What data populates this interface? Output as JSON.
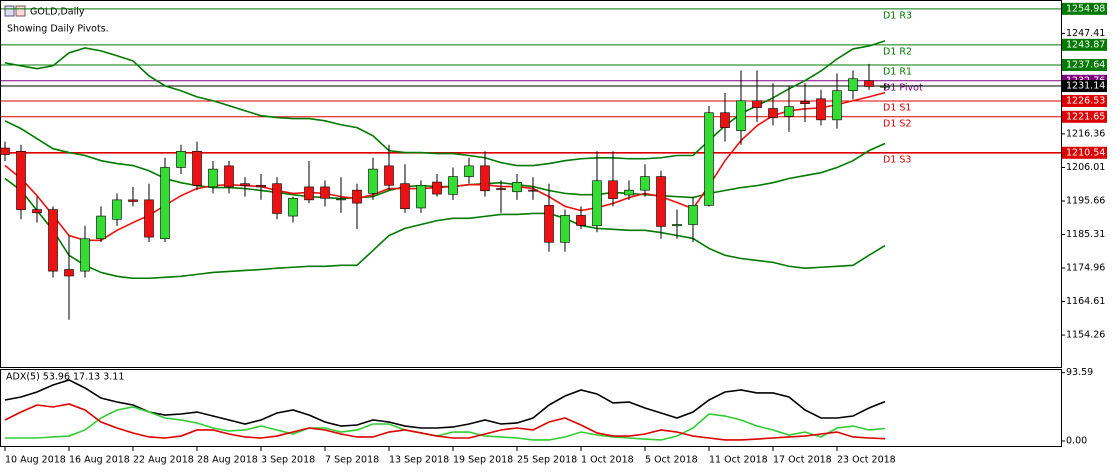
{
  "chart_data": [
    {
      "type": "candlestick",
      "title": "GOLD,Daily",
      "subtitle": "Showing Daily Pivots.",
      "categories": [
        "10 Aug 2018",
        null,
        null,
        null,
        "16 Aug 2018",
        null,
        null,
        null,
        "22 Aug 2018",
        null,
        null,
        null,
        "28 Aug 2018",
        null,
        null,
        null,
        "3 Sep 2018",
        null,
        null,
        null,
        "7 Sep 2018",
        null,
        null,
        null,
        "13 Sep 2018",
        null,
        null,
        null,
        "19 Sep 2018",
        null,
        null,
        null,
        "25 Sep 2018",
        null,
        null,
        null,
        "1 Oct 2018",
        null,
        null,
        null,
        "5 Oct 2018",
        null,
        null,
        null,
        "11 Oct 2018",
        null,
        null,
        null,
        "17 Oct 2018",
        null,
        null,
        null,
        "23 Oct 2018",
        null,
        null,
        null
      ],
      "open": [
        1212,
        1211,
        1193,
        1193,
        1174.5,
        1174,
        1184,
        1190,
        1196,
        1196,
        1184,
        1206,
        1211,
        1200,
        1206.5,
        1201,
        1200.5,
        1201,
        1191,
        1200,
        1200,
        1196,
        1199,
        1198,
        1206.5,
        1201,
        1193.5,
        1201.5,
        1197.7,
        1203.2,
        1206.5,
        1199.5,
        1198.5,
        1199,
        1194.3,
        1182.9,
        1191.2,
        1188,
        1201.9,
        1197.5,
        1199,
        1203.2,
        1188,
        1188.4,
        1194.3,
        1222.9,
        1217.4,
        1226.6,
        1224.2,
        1221.8,
        1226.3,
        1227.2,
        1220.7,
        1229.7,
        1232.8,
        1231
      ],
      "high": [
        1214,
        1213,
        1197,
        1194,
        1185,
        1188,
        1194,
        1198,
        1200,
        1201,
        1209,
        1213,
        1214,
        1208,
        1208,
        1203,
        1204,
        1203,
        1197,
        1208,
        1202,
        1203,
        1201,
        1209,
        1213,
        1207,
        1202,
        1204,
        1206,
        1209,
        1211,
        1202,
        1204,
        1203,
        1201,
        1193,
        1194,
        1211,
        1211,
        1202,
        1207,
        1205,
        1193,
        1197,
        1225,
        1229,
        1236,
        1236,
        1232,
        1231,
        1232,
        1230,
        1235,
        1236,
        1238,
        1232
      ],
      "low": [
        1208,
        1190,
        1189,
        1172,
        1159,
        1172,
        1183,
        1188,
        1194,
        1183,
        1183,
        1204,
        1199,
        1198,
        1198,
        1197,
        1196,
        1190,
        1189,
        1195,
        1194,
        1192,
        1187,
        1196,
        1199,
        1192,
        1192,
        1197,
        1196,
        1201,
        1197,
        1192,
        1196,
        1196,
        1180,
        1180,
        1187,
        1186,
        1194,
        1196,
        1197,
        1184,
        1184,
        1183,
        1194,
        1214,
        1213,
        1220,
        1219,
        1217,
        1220,
        1219,
        1218,
        1227,
        1230,
        1230
      ],
      "close": [
        1210,
        1193,
        1192,
        1174,
        1172.5,
        1184,
        1191,
        1196,
        1195.5,
        1184.5,
        1206,
        1211,
        1200.5,
        1205.5,
        1200,
        1200.5,
        1200,
        1191.8,
        1196.5,
        1196,
        1196.5,
        1196.3,
        1195,
        1205.5,
        1200.5,
        1193.3,
        1200.5,
        1197.8,
        1203.2,
        1206.5,
        1198.8,
        1199.2,
        1201.4,
        1198.8,
        1182.9,
        1191.2,
        1188.1,
        1201.9,
        1196.4,
        1199,
        1203.2,
        1187.8,
        1188.4,
        1194.3,
        1222.9,
        1218.3,
        1226.6,
        1224.5,
        1221.4,
        1224.8,
        1225.7,
        1220.7,
        1229.7,
        1233.4,
        1231,
        1231.1
      ],
      "up_color": "#33dd33",
      "down_color": "#ee1111",
      "lines": [
        {
          "color": "#007a00",
          "values": [
            1238.3,
            1237.4,
            1236.5,
            1237.4,
            1241.4,
            1242.9,
            1242.0,
            1240.5,
            1238.9,
            1234.3,
            1231.2,
            1229.7,
            1227.8,
            1226.6,
            1225.1,
            1223.5,
            1222.0,
            1221.4,
            1221.1,
            1221.1,
            1220.4,
            1219.2,
            1218.3,
            1215.8,
            1211.2,
            1210.6,
            1210.6,
            1210.3,
            1210.3,
            1209.7,
            1209.0,
            1207.5,
            1206.6,
            1206.6,
            1207.2,
            1208.1,
            1208.7,
            1209.0,
            1209.0,
            1208.7,
            1208.7,
            1209.0,
            1209.7,
            1209.7,
            1214.3,
            1218.9,
            1222.6,
            1225.1,
            1227.5,
            1230.3,
            1232.8,
            1235.8,
            1239.5,
            1242.6,
            1243.5,
            1245.1
          ]
        },
        {
          "color": "#007a00",
          "values": [
            1220.4,
            1218.0,
            1214.9,
            1211.8,
            1210.6,
            1209.7,
            1208.1,
            1207.2,
            1206.6,
            1205.0,
            1202.6,
            1201.3,
            1200.4,
            1199.8,
            1199.8,
            1199.5,
            1198.9,
            1198.3,
            1197.6,
            1197.0,
            1196.7,
            1196.4,
            1196.7,
            1197.0,
            1198.9,
            1200.1,
            1200.4,
            1200.1,
            1200.1,
            1200.7,
            1201.0,
            1201.3,
            1200.7,
            1200.1,
            1198.9,
            1198.0,
            1197.6,
            1197.6,
            1198.3,
            1198.0,
            1197.6,
            1197.3,
            1197.0,
            1196.7,
            1198.0,
            1198.9,
            1199.8,
            1200.4,
            1201.3,
            1202.6,
            1203.5,
            1204.4,
            1206.0,
            1208.1,
            1211.2,
            1213.4
          ]
        },
        {
          "color": "#007a00",
          "values": [
            1202.6,
            1198.9,
            1192.7,
            1186.6,
            1178.9,
            1175.8,
            1173.6,
            1172.4,
            1171.8,
            1171.8,
            1172.1,
            1172.4,
            1173.0,
            1173.6,
            1173.9,
            1174.2,
            1174.5,
            1174.9,
            1175.2,
            1175.5,
            1175.5,
            1175.8,
            1175.8,
            1180.4,
            1185.0,
            1187.2,
            1188.4,
            1189.6,
            1190.3,
            1190.3,
            1190.9,
            1191.5,
            1191.5,
            1191.8,
            1191.8,
            1190.3,
            1188.1,
            1187.2,
            1186.9,
            1186.6,
            1186.6,
            1185.9,
            1185.0,
            1184.1,
            1181.0,
            1178.9,
            1177.9,
            1177.3,
            1176.7,
            1175.5,
            1174.9,
            1175.2,
            1175.5,
            1175.8,
            1178.9,
            1181.9
          ]
        },
        {
          "color": "#ee1111",
          "values": [
            1206.6,
            1202.6,
            1197.3,
            1191.2,
            1185.0,
            1183.5,
            1183.5,
            1186.6,
            1189.0,
            1191.2,
            1194.3,
            1197.3,
            1199.5,
            1200.4,
            1200.7,
            1200.4,
            1200.1,
            1198.9,
            1198.0,
            1198.3,
            1198.0,
            1197.0,
            1196.4,
            1197.6,
            1199.5,
            1199.5,
            1199.5,
            1199.8,
            1200.1,
            1200.7,
            1200.7,
            1200.1,
            1200.1,
            1199.5,
            1197.0,
            1194.0,
            1192.7,
            1193.6,
            1194.9,
            1196.7,
            1198.0,
            1197.0,
            1195.2,
            1193.3,
            1200.4,
            1208.1,
            1214.3,
            1218.9,
            1222.0,
            1223.5,
            1224.1,
            1224.4,
            1225.4,
            1226.6,
            1227.8,
            1229.1
          ]
        }
      ],
      "pivots": [
        {
          "label": "D1 R3",
          "value": 1254.98,
          "color": "#007a00"
        },
        {
          "label": "D1 R2",
          "value": 1243.87,
          "color": "#007a00"
        },
        {
          "label": "D1 R1",
          "value": 1237.64,
          "color": "#007a00"
        },
        {
          "label": "D1 Pivot",
          "value": 1232.76,
          "color": "#800080"
        },
        {
          "label": "D1 S1",
          "value": 1226.53,
          "color": "#dd0000"
        },
        {
          "label": "D1 S2",
          "value": 1221.65,
          "color": "#dd0000"
        },
        {
          "label": "D1 S3",
          "value": 1210.54,
          "color": "#dd0000"
        }
      ],
      "current_price": 1231.14,
      "ylim": [
        1144.4,
        1257.4
      ],
      "yticks": [
        1154.26,
        1164.61,
        1174.96,
        1185.31,
        1195.66,
        1206.01,
        1216.36,
        1247.41
      ]
    },
    {
      "type": "line",
      "title": "ADX(5) 53.96 17.13 3.11",
      "ylim": [
        0,
        100
      ],
      "yticks": [
        93.59,
        {
          "value": 0,
          "label": "0.00"
        }
      ],
      "series": [
        {
          "color": "#000000",
          "values": [
            56.2,
            60.3,
            67.1,
            76.7,
            83.6,
            72.6,
            58.9,
            53.4,
            49.3,
            39.7,
            35.6,
            37.0,
            39.7,
            34.2,
            28.8,
            23.3,
            28.8,
            38.4,
            42.5,
            35.6,
            26.0,
            20.5,
            21.9,
            28.8,
            26.0,
            20.5,
            17.8,
            17.8,
            19.2,
            23.3,
            28.8,
            23.3,
            24.7,
            31.5,
            49.3,
            61.6,
            69.9,
            64.4,
            52.1,
            53.4,
            45.2,
            38.4,
            31.5,
            39.7,
            56.2,
            67.1,
            69.9,
            65.8,
            65.8,
            60.3,
            42.5,
            31.5,
            31.5,
            34.2,
            45.2,
            53.96
          ]
        },
        {
          "color": "#33cc33",
          "values": [
            4.1,
            4.1,
            4.1,
            5.5,
            6.8,
            15.1,
            31.5,
            42.5,
            46.6,
            39.7,
            31.5,
            28.8,
            24.7,
            17.8,
            13.7,
            15.1,
            20.5,
            15.1,
            9.6,
            17.8,
            17.8,
            12.3,
            15.1,
            23.3,
            23.3,
            15.1,
            11.0,
            6.8,
            12.3,
            12.3,
            6.8,
            5.5,
            4.1,
            1.4,
            1.4,
            5.5,
            12.3,
            8.2,
            5.5,
            4.1,
            2.7,
            1.4,
            6.8,
            17.8,
            37.0,
            34.2,
            28.8,
            20.5,
            15.1,
            8.2,
            12.3,
            5.5,
            17.8,
            20.5,
            15.1,
            17.13
          ]
        },
        {
          "color": "#dd0000",
          "values": [
            28.8,
            39.7,
            49.3,
            46.6,
            50.7,
            42.5,
            26.0,
            17.8,
            11.0,
            5.5,
            4.1,
            6.8,
            15.1,
            15.1,
            9.6,
            5.5,
            4.1,
            6.8,
            12.3,
            17.8,
            15.1,
            9.6,
            5.5,
            5.5,
            12.3,
            15.1,
            11.0,
            6.8,
            4.1,
            4.1,
            9.6,
            15.1,
            17.8,
            15.1,
            26.0,
            31.5,
            21.9,
            11.0,
            6.8,
            6.8,
            9.6,
            15.1,
            12.3,
            6.8,
            4.1,
            1.4,
            1.4,
            2.7,
            4.1,
            5.5,
            6.8,
            9.6,
            12.3,
            5.5,
            4.1,
            3.11
          ]
        }
      ]
    }
  ]
}
